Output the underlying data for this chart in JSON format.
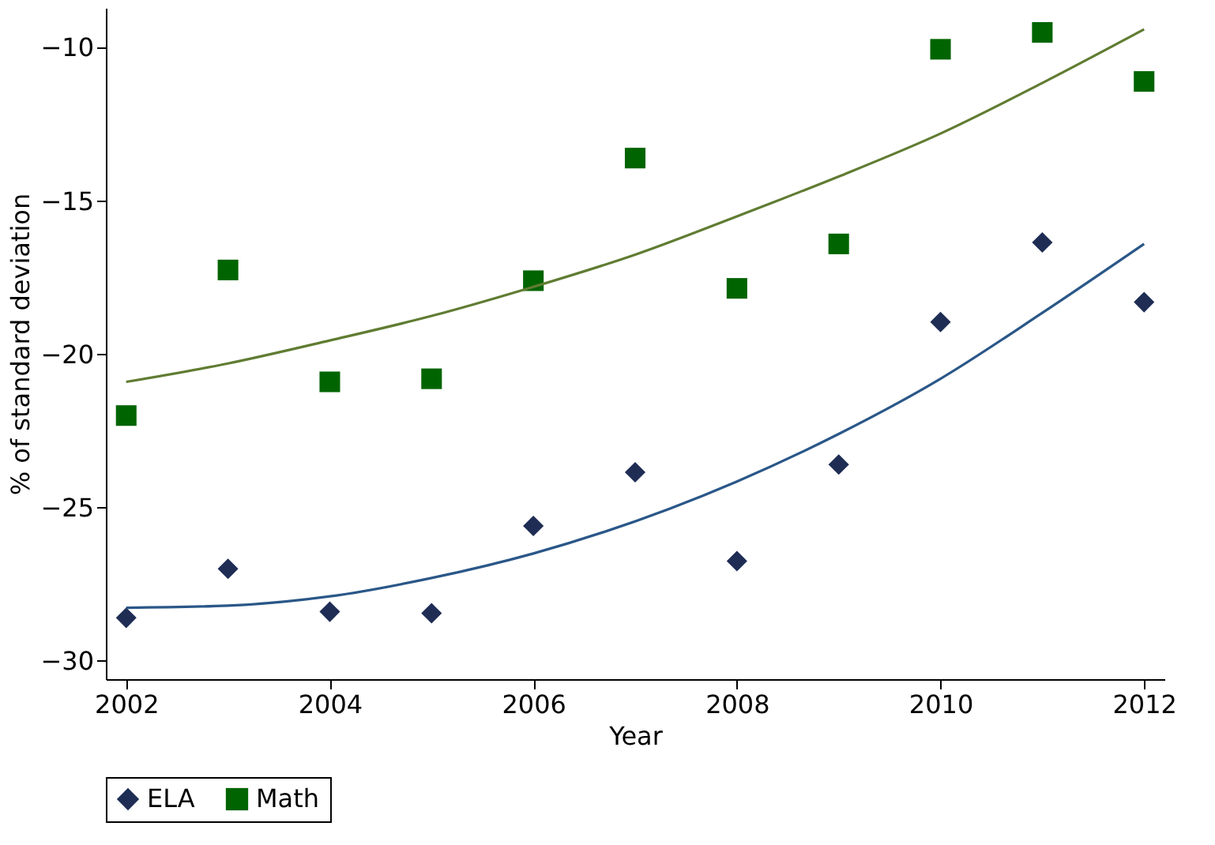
{
  "chart_data": {
    "type": "scatter",
    "xlabel": "Year",
    "ylabel": "% of standard deviation",
    "x": [
      2002,
      2003,
      2004,
      2005,
      2006,
      2007,
      2008,
      2009,
      2010,
      2011,
      2012
    ],
    "series": [
      {
        "name": "ELA",
        "color": "#1f2d55",
        "marker": "diamond",
        "values": [
          -28.6,
          -27.0,
          -28.4,
          -28.45,
          -25.6,
          -23.85,
          -26.75,
          -23.6,
          -18.95,
          -16.35,
          -18.3
        ]
      },
      {
        "name": "Math",
        "color": "#006400",
        "marker": "square",
        "values": [
          -22.0,
          -17.25,
          -20.9,
          -20.8,
          -17.6,
          -13.6,
          -17.85,
          -16.4,
          -10.05,
          -9.5,
          -11.1
        ]
      },
      {
        "type": "line",
        "color": "#2a5788",
        "x": [
          2002,
          2003,
          2004,
          2005,
          2006,
          2008,
          2009,
          2010,
          2011,
          2012
        ],
        "values": [
          -28.27,
          -28.2,
          -27.9,
          -27.3,
          -26.5,
          -24.15,
          -22.6,
          -20.8,
          -18.65,
          -16.4
        ]
      },
      {
        "type": "line",
        "color": "#607c32",
        "x": [
          2002,
          2003,
          2004,
          2005,
          2006,
          2007,
          2008,
          2009,
          2010,
          2011,
          2012
        ],
        "values": [
          -20.9,
          -20.3,
          -19.55,
          -18.75,
          -17.8,
          -16.75,
          -15.5,
          -14.2,
          -12.8,
          -11.15,
          -9.4
        ]
      }
    ],
    "xlim": [
      2001.8,
      2012.2
    ],
    "xticks": [
      2002,
      2004,
      2006,
      2008,
      2010,
      2012
    ],
    "ylim": [
      -30.6,
      -8.7
    ],
    "yticks": [
      -30,
      -25,
      -20,
      -15,
      -10
    ],
    "grid": false,
    "legend": "bottom"
  }
}
